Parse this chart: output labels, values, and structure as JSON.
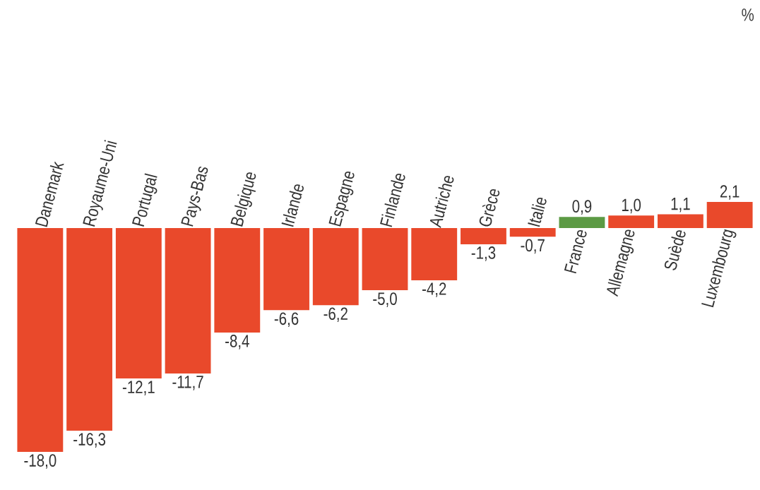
{
  "chart_data": {
    "type": "bar",
    "annotations": [
      "%"
    ],
    "categories": [
      "Danemark",
      "Royaume-Uni",
      "Portugal",
      "Pays-Bas",
      "Belgique",
      "Irlande",
      "Espagne",
      "Finlande",
      "Autriche",
      "Grèce",
      "Italie",
      "France",
      "Allemagne",
      "Suède",
      "Luxembourg"
    ],
    "values": [
      -18.0,
      -16.3,
      -12.1,
      -11.7,
      -8.4,
      -6.6,
      -6.2,
      -5.0,
      -4.2,
      -1.3,
      -0.7,
      0.9,
      1.0,
      1.1,
      2.1
    ],
    "value_labels": [
      "-18,0",
      "-16,3",
      "-12,1",
      "-11,7",
      "-8,4",
      "-6,6",
      "-6,2",
      "-5,0",
      "-4,2",
      "-1,3",
      "-0,7",
      "0,9",
      "1,0",
      "1,1",
      "2,1"
    ],
    "colors": [
      "#e9492b",
      "#e9492b",
      "#e9492b",
      "#e9492b",
      "#e9492b",
      "#e9492b",
      "#e9492b",
      "#e9492b",
      "#e9492b",
      "#e9492b",
      "#e9492b",
      "#5c9a44",
      "#e9492b",
      "#e9492b",
      "#e9492b"
    ]
  }
}
